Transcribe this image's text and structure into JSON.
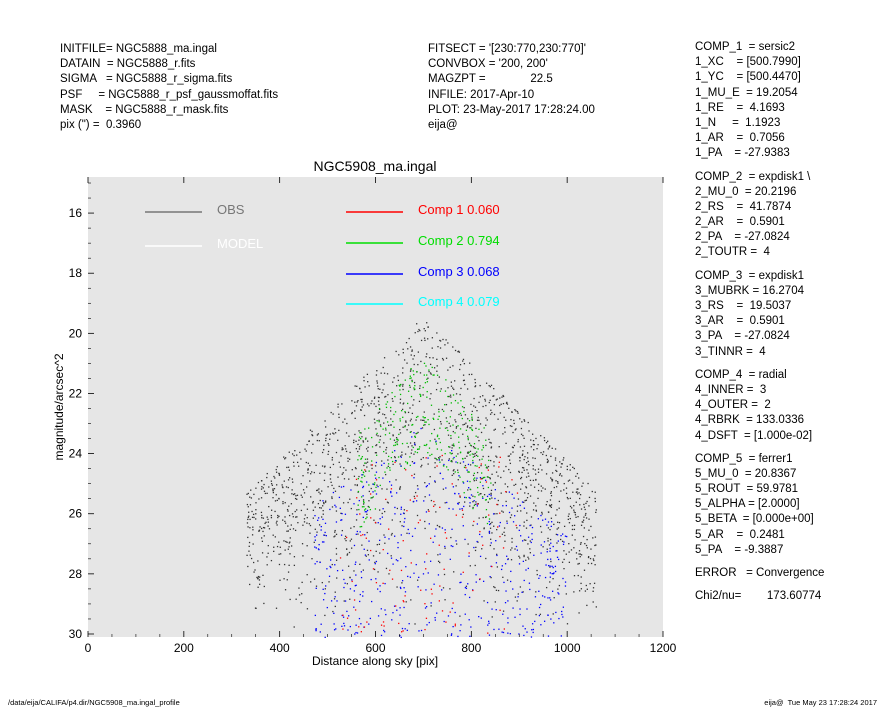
{
  "header_left": [
    "INITFILE= NGC5888_ma.ingal",
    "DATAIN  = NGC5888_r.fits",
    "SIGMA   = NGC5888_r_sigma.fits",
    "PSF     = NGC5888_r_psf_gaussmoffat.fits",
    "MASK    = NGC5888_r_mask.fits",
    "pix (\") =  0.3960"
  ],
  "header_mid": [
    "FITSECT = '[230:770,230:770]'",
    "CONVBOX = '200, 200'",
    "MAGZPT =              22.5",
    "INFILE: 2017-Apr-10",
    "PLOT: 23-May-2017 17:28:24.00",
    "eija@"
  ],
  "params": [
    [
      "COMP_1  = sersic2",
      "1_XC    = [500.7990]",
      "1_YC    = [500.4470]",
      "1_MU_E  = 19.2054",
      "1_RE    =  4.1693",
      "1_N     =  1.1923",
      "1_AR    =  0.7056",
      "1_PA    = -27.9383"
    ],
    [
      "COMP_2  = expdisk1 \\",
      "2_MU_0  = 20.2196",
      "2_RS    =  41.7874",
      "2_AR    =  0.5901",
      "2_PA    = -27.0824",
      "2_TOUTR =  4"
    ],
    [
      "COMP_3  = expdisk1",
      "3_MUBRK = 16.2704",
      "3_RS    =  19.5037",
      "3_AR    =  0.5901",
      "3_PA    = -27.0824",
      "3_TINNR =  4"
    ],
    [
      "COMP_4  = radial",
      "4_INNER =  3",
      "4_OUTER =  2",
      "4_RBRK  = 133.0336",
      "4_DSFT  = [1.000e-02]"
    ],
    [
      "COMP_5  = ferrer1",
      "5_MU_0  = 20.8367",
      "5_ROUT  = 59.9781",
      "5_ALPHA = [2.0000]",
      "5_BETA  = [0.000e+00]",
      "5_AR    =  0.2481",
      "5_PA    = -9.3887"
    ],
    [
      "ERROR   = Convergence"
    ],
    [
      "Chi2/nu=        173.60774"
    ]
  ],
  "footer_left": "/data/eija/CALIFA/p4.dir/NGC5908_ma.ingal_profile",
  "footer_right": "eija@  Tue May 23 17:28:24 2017",
  "chart_data": {
    "type": "scatter",
    "title": "NGC5908_ma.ingal",
    "xlabel": "Distance along sky [pix]",
    "ylabel": "magnitude/arcsec^2",
    "xlim": [
      0,
      1200
    ],
    "ylim": [
      30.1,
      14.8
    ],
    "y_inverted": true,
    "xticks": [
      0,
      200,
      400,
      600,
      800,
      1000,
      1200
    ],
    "yticks": [
      16,
      18,
      20,
      22,
      24,
      26,
      28,
      30
    ],
    "background_color": "#e6e6e6",
    "grid": false,
    "legend": [
      {
        "label": "OBS",
        "value": "",
        "color": "#777777"
      },
      {
        "label": "MODEL",
        "value": "",
        "color": "#ffffff"
      },
      {
        "label": "Comp 1",
        "value": "0.060",
        "color": "#ff0000"
      },
      {
        "label": "Comp 2",
        "value": "0.794",
        "color": "#00dd00"
      },
      {
        "label": "Comp 3",
        "value": "0.068",
        "color": "#0000ff"
      },
      {
        "label": "Comp 4",
        "value": "0.079",
        "color": "#00ffff"
      }
    ],
    "series": [
      {
        "name": "OBS",
        "color": "#333333",
        "description": "scattered points forming a peak",
        "peak_x": 700,
        "peak_y": 19.4,
        "x_range": [
          330,
          1060
        ],
        "y_floor": 30
      },
      {
        "name": "Comp 2",
        "color": "#00bb00",
        "peak_x": 700,
        "peak_y": 20.6,
        "x_range": [
          560,
          840
        ]
      },
      {
        "name": "Comp 3",
        "color": "#0000ff",
        "x_range": [
          470,
          1000
        ],
        "y_floor": 30
      },
      {
        "name": "Comp 1",
        "color": "#ff0000",
        "x_range": [
          520,
          900
        ]
      }
    ]
  }
}
